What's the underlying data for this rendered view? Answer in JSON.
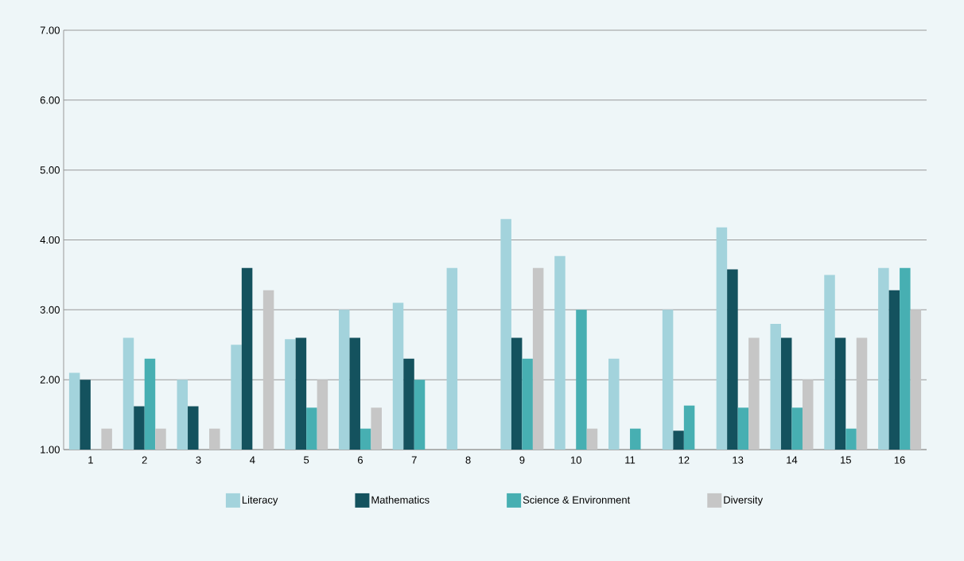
{
  "chart_data": {
    "type": "bar",
    "categories": [
      "1",
      "2",
      "3",
      "4",
      "5",
      "6",
      "7",
      "8",
      "9",
      "10",
      "11",
      "12",
      "13",
      "14",
      "15",
      "16"
    ],
    "series": [
      {
        "name": "Literacy",
        "color": "#a3d3dc",
        "values": [
          2.1,
          2.6,
          2.0,
          2.5,
          2.58,
          3.0,
          3.1,
          3.6,
          4.3,
          3.77,
          2.3,
          3.0,
          4.18,
          2.8,
          3.5,
          3.6
        ]
      },
      {
        "name": "Mathematics",
        "color": "#14525e",
        "values": [
          2.0,
          1.62,
          1.62,
          3.6,
          2.6,
          2.6,
          2.3,
          null,
          2.6,
          null,
          null,
          1.27,
          3.58,
          2.6,
          2.6,
          3.28
        ]
      },
      {
        "name": "Science & Environment",
        "color": "#47afb2",
        "values": [
          null,
          2.3,
          null,
          null,
          1.6,
          1.3,
          2.0,
          null,
          2.3,
          3.0,
          1.3,
          1.63,
          1.6,
          1.6,
          1.3,
          3.6
        ]
      },
      {
        "name": "Diversity",
        "color": "#c6c6c6",
        "values": [
          1.3,
          1.3,
          1.3,
          3.28,
          2.0,
          1.6,
          null,
          null,
          3.6,
          1.3,
          null,
          null,
          2.6,
          2.0,
          2.6,
          3.0
        ]
      }
    ],
    "ylim": [
      1,
      7
    ],
    "yticks": [
      {
        "value": 1,
        "label": "1.00"
      },
      {
        "value": 2,
        "label": "2.00"
      },
      {
        "value": 3,
        "label": "3.00"
      },
      {
        "value": 4,
        "label": "4.00"
      },
      {
        "value": 5,
        "label": "5.00"
      },
      {
        "value": 6,
        "label": "6.00"
      },
      {
        "value": 7,
        "label": "7.00"
      }
    ],
    "grid": "y",
    "legend": "bottom"
  }
}
